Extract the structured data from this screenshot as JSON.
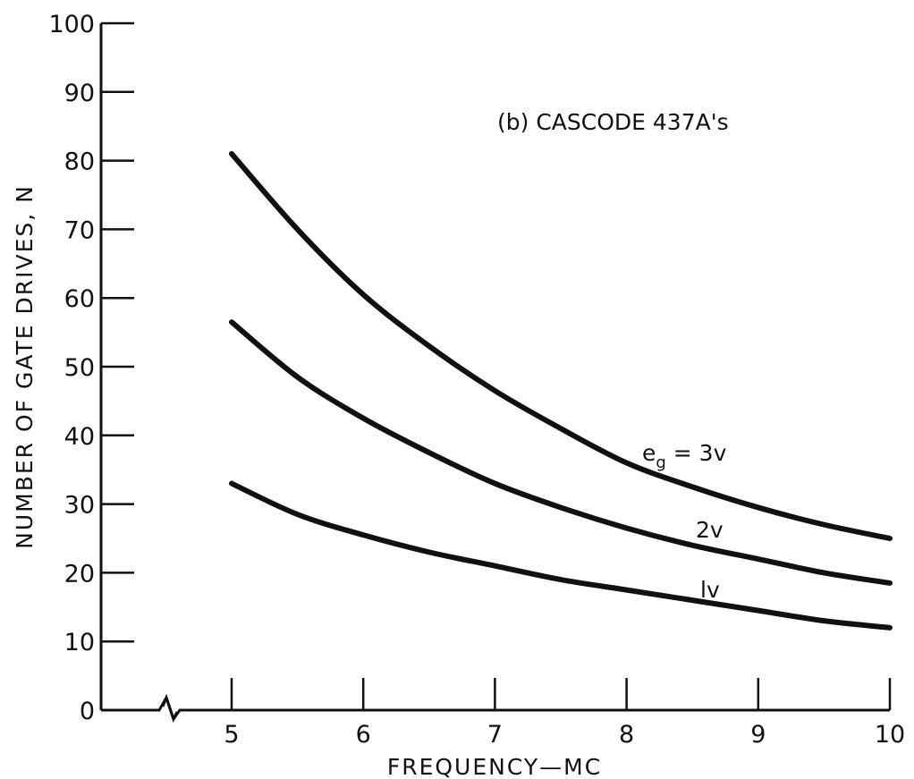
{
  "chart_data": {
    "type": "line",
    "title": "(b) CASCODE 437A's",
    "xlabel": "FREQUENCY—MC",
    "ylabel": "NUMBER OF GATE DRIVES, N",
    "x_ticks": [
      5,
      6,
      7,
      8,
      9,
      10
    ],
    "y_ticks": [
      0,
      10,
      20,
      30,
      40,
      50,
      60,
      70,
      80,
      90,
      100
    ],
    "xlim": [
      4,
      10
    ],
    "ylim": [
      0,
      100
    ],
    "axis_break": "x",
    "grid": false,
    "series": [
      {
        "name": "e_g = 3v",
        "label_main": "e",
        "label_sub": "g",
        "label_rest": " = 3v",
        "x": [
          5,
          5.5,
          6,
          6.5,
          7,
          7.5,
          8,
          8.5,
          9,
          9.5,
          10
        ],
        "values": [
          81,
          70,
          60.5,
          53,
          46.5,
          41,
          36,
          32.5,
          29.5,
          27,
          25
        ]
      },
      {
        "name": "2v",
        "label_main": "2v",
        "x": [
          5,
          5.5,
          6,
          6.5,
          7,
          7.5,
          8,
          8.5,
          9,
          9.5,
          10
        ],
        "values": [
          56.5,
          48.5,
          42.5,
          37.5,
          33,
          29.5,
          26.5,
          24,
          22,
          20,
          18.5
        ]
      },
      {
        "name": "1v",
        "label_main": "lv",
        "x": [
          5,
          5.5,
          6,
          6.5,
          7,
          7.5,
          8,
          8.5,
          9,
          9.5,
          10
        ],
        "values": [
          33,
          28.5,
          25.5,
          23,
          21,
          19,
          17.5,
          16,
          14.5,
          13,
          12
        ]
      }
    ]
  }
}
